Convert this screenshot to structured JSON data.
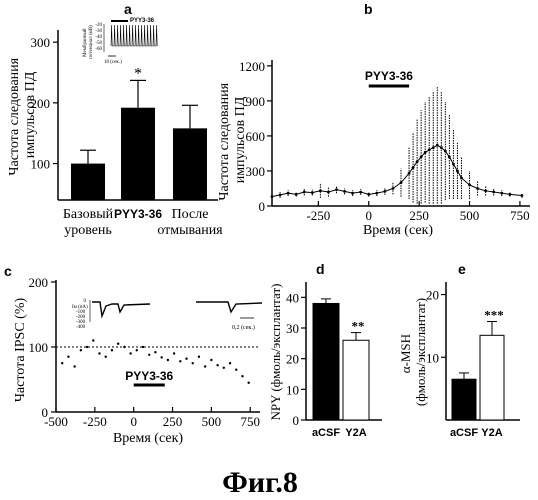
{
  "figure_caption": "Фиг.8",
  "panel_labels": {
    "a": "a",
    "b": "b",
    "c": "c",
    "d": "d",
    "e": "e"
  },
  "chart_data": [
    {
      "panel": "a",
      "type": "bar",
      "ylabel": "Частота следования импульсов ПД",
      "categories": [
        "Базовый уровень",
        "PYY3-36",
        "После отмывания"
      ],
      "category_lines": [
        [
          "Базовый",
          "уровень"
        ],
        [
          "PYY3-36"
        ],
        [
          "После",
          "отмывания"
        ]
      ],
      "values": [
        100,
        192,
        158
      ],
      "errors": [
        22,
        45,
        38
      ],
      "significance": [
        "",
        "*",
        ""
      ],
      "y_ticks": [
        100,
        200,
        300
      ],
      "ylim": [
        40,
        320
      ],
      "inset": {
        "bar_label": "PYY3-36",
        "ylabel_lines": [
          "Мембранный",
          "потенциал (мВ)"
        ],
        "y_ticks": [
          "-20",
          "-30",
          "-40",
          "-50",
          "-60"
        ],
        "x_scale": "10 (сек.)"
      }
    },
    {
      "panel": "b",
      "type": "line",
      "ylabel": "Частота следования импульсов ПД",
      "xlabel": "Время (сек)",
      "x_ticks": [
        -250,
        0,
        250,
        500,
        750
      ],
      "y_ticks": [
        0,
        300,
        600,
        900,
        1200
      ],
      "xlim": [
        -480,
        800
      ],
      "ylim": [
        0,
        1250
      ],
      "bar_label": "PYY3-36",
      "bar_x": [
        0,
        200
      ],
      "x": [
        -480,
        -440,
        -400,
        -360,
        -320,
        -280,
        -240,
        -200,
        -160,
        -120,
        -80,
        -40,
        0,
        40,
        80,
        120,
        160,
        200,
        220,
        240,
        260,
        280,
        300,
        320,
        340,
        360,
        380,
        400,
        420,
        440,
        460,
        500,
        540,
        580,
        620,
        660,
        700,
        760
      ],
      "y": [
        80,
        95,
        110,
        100,
        120,
        115,
        130,
        120,
        140,
        125,
        110,
        120,
        100,
        110,
        125,
        150,
        200,
        280,
        330,
        380,
        420,
        460,
        480,
        500,
        520,
        500,
        470,
        420,
        360,
        300,
        240,
        180,
        150,
        130,
        120,
        110,
        100,
        90
      ],
      "err": [
        20,
        25,
        25,
        20,
        30,
        25,
        60,
        40,
        30,
        25,
        25,
        25,
        20,
        25,
        30,
        50,
        120,
        220,
        300,
        360,
        400,
        430,
        460,
        480,
        500,
        480,
        420,
        360,
        300,
        240,
        180,
        120,
        60,
        40,
        30,
        25,
        20,
        20
      ]
    },
    {
      "panel": "c",
      "type": "scatter",
      "ylabel": "Частота IPSC (%)",
      "xlabel": "Время (сек)",
      "x_ticks": [
        -500,
        -250,
        0,
        250,
        500,
        750
      ],
      "y_ticks": [
        0,
        100,
        200
      ],
      "xlim": [
        -500,
        800
      ],
      "ylim": [
        0,
        200
      ],
      "baseline": 100,
      "bar_label": "PYY3-36",
      "bar_x": [
        0,
        200
      ],
      "inset": {
        "ylabel_lines": [
          "Iм (пА)",
          "-100",
          "-200",
          "-300",
          "-400"
        ],
        "top_value": "0",
        "x_scale": "0,2 (сек.)"
      },
      "x": [
        -460,
        -420,
        -380,
        -340,
        -300,
        -260,
        -220,
        -180,
        -140,
        -100,
        -60,
        -20,
        20,
        60,
        100,
        140,
        180,
        220,
        260,
        300,
        340,
        380,
        420,
        460,
        500,
        540,
        580,
        620,
        660,
        700,
        740
      ],
      "y": [
        75,
        85,
        70,
        95,
        100,
        110,
        90,
        85,
        95,
        105,
        100,
        90,
        95,
        100,
        88,
        92,
        84,
        80,
        90,
        78,
        82,
        75,
        85,
        70,
        80,
        72,
        68,
        75,
        65,
        55,
        45
      ]
    },
    {
      "panel": "d",
      "type": "bar",
      "ylabel": "NPY (фмоль/эксплантат)",
      "categories": [
        "aCSF",
        "Y2A"
      ],
      "values": [
        38,
        26
      ],
      "errors": [
        1.5,
        2.5
      ],
      "fills": [
        "#000000",
        "#ffffff"
      ],
      "significance": [
        "",
        "**"
      ],
      "y_ticks": [
        0,
        10,
        20,
        30,
        40
      ],
      "ylim": [
        0,
        45
      ]
    },
    {
      "panel": "e",
      "type": "bar",
      "ylabel": "α-MSH (фмоль/эксплантат)",
      "categories": [
        "aCSF",
        "Y2A"
      ],
      "values": [
        6.5,
        13.5
      ],
      "errors": [
        1.0,
        2.2
      ],
      "fills": [
        "#000000",
        "#ffffff"
      ],
      "significance": [
        "",
        "***"
      ],
      "y_ticks": [
        10,
        20
      ],
      "ylim": [
        0,
        22
      ]
    }
  ]
}
